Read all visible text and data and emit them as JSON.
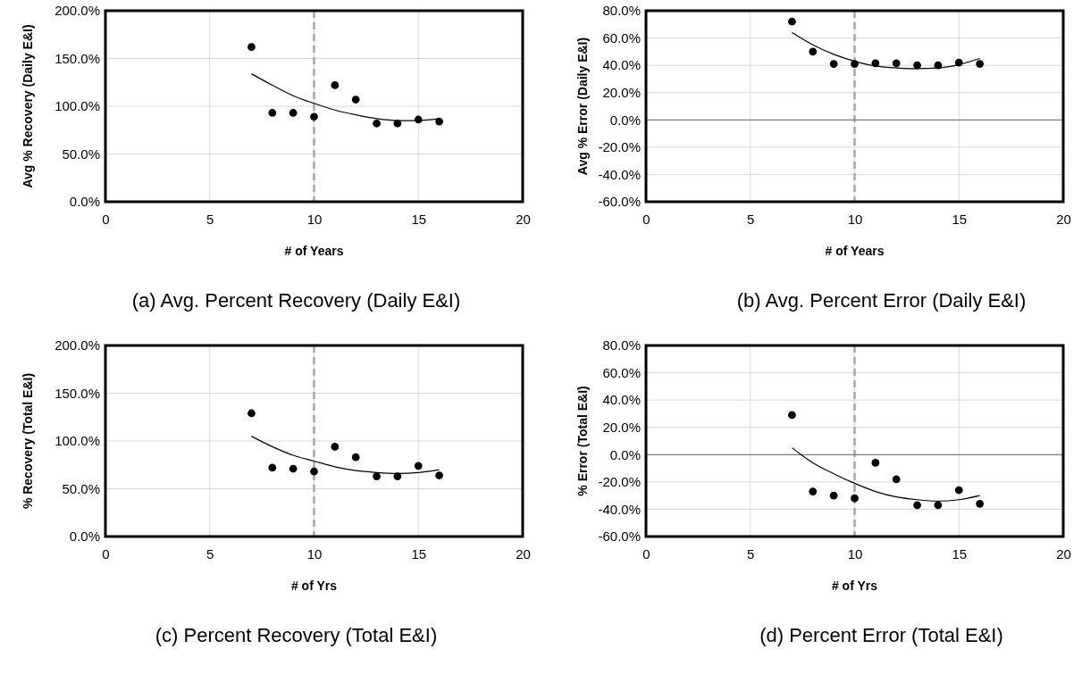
{
  "chart_data": [
    {
      "type": "scatter",
      "title": "(a) Avg. Percent Recovery (Daily E&I)",
      "xlabel": "# of Years",
      "ylabel": "Avg % Recovery (Daily E&I)",
      "xlim": [
        0,
        20
      ],
      "xticks": [
        0,
        5,
        10,
        15,
        20
      ],
      "ylim": [
        0,
        200
      ],
      "yticks": [
        {
          "value": 0,
          "label": "0.0%"
        },
        {
          "value": 50,
          "label": "50.0%"
        },
        {
          "value": 100,
          "label": "100.0%"
        },
        {
          "value": 150,
          "label": "150.0%"
        },
        {
          "value": 200,
          "label": "200.0%"
        }
      ],
      "grid": true,
      "series": [
        {
          "marker": "circle",
          "color": "#000000",
          "x": [
            7,
            8,
            9,
            10,
            11,
            12,
            13,
            14,
            15,
            16
          ],
          "values": [
            162,
            93,
            93,
            89,
            122,
            107,
            82,
            82,
            86,
            84
          ]
        },
        {
          "type": "line",
          "marker": "none",
          "color": "#000000",
          "x": [
            7,
            8,
            9,
            10,
            11,
            12,
            13,
            14,
            15,
            16
          ],
          "values": [
            134,
            122,
            111,
            103,
            96,
            91,
            87,
            85,
            85,
            87
          ]
        }
      ],
      "ref_lines": [
        {
          "axis": "x",
          "value": 10,
          "color": "#a6a6a6",
          "line_style": "dashed"
        }
      ]
    },
    {
      "type": "scatter",
      "title": "(b) Avg. Percent Error (Daily E&I)",
      "xlabel": "# of Years",
      "ylabel": "Avg % Error (Daily E&I)",
      "xlim": [
        0,
        20
      ],
      "xticks": [
        0,
        5,
        10,
        15,
        20
      ],
      "ylim": [
        -60,
        80
      ],
      "yticks": [
        {
          "value": -60,
          "label": "-60.0%"
        },
        {
          "value": -40,
          "label": "-40.0%"
        },
        {
          "value": -20,
          "label": "-20.0%"
        },
        {
          "value": 0,
          "label": "0.0%"
        },
        {
          "value": 20,
          "label": "20.0%"
        },
        {
          "value": 40,
          "label": "40.0%"
        },
        {
          "value": 60,
          "label": "60.0%"
        },
        {
          "value": 80,
          "label": "80.0%"
        }
      ],
      "grid": true,
      "series": [
        {
          "marker": "circle",
          "color": "#000000",
          "x": [
            7,
            8,
            9,
            10,
            11,
            12,
            13,
            14,
            15,
            16
          ],
          "values": [
            72,
            50,
            41,
            41,
            41.5,
            41.5,
            40,
            40,
            42,
            41
          ]
        },
        {
          "type": "line",
          "marker": "none",
          "color": "#000000",
          "x": [
            7,
            8,
            9,
            10,
            11,
            12,
            13,
            14,
            15,
            16
          ],
          "values": [
            64,
            55,
            48,
            43,
            39.5,
            38,
            37.5,
            38,
            40.5,
            45
          ]
        }
      ],
      "ref_lines": [
        {
          "axis": "x",
          "value": 10,
          "color": "#a6a6a6",
          "line_style": "dashed"
        },
        {
          "axis": "y",
          "value": 0,
          "color": "#7f7f7f",
          "line_style": "solid"
        }
      ]
    },
    {
      "type": "scatter",
      "title": "(c) Percent Recovery (Total E&I)",
      "xlabel": "# of Yrs",
      "ylabel": "% Recovery (Total E&I)",
      "xlim": [
        0,
        20
      ],
      "xticks": [
        0,
        5,
        10,
        15,
        20
      ],
      "ylim": [
        0,
        200
      ],
      "yticks": [
        {
          "value": 0,
          "label": "0.0%"
        },
        {
          "value": 50,
          "label": "50.0%"
        },
        {
          "value": 100,
          "label": "100.0%"
        },
        {
          "value": 150,
          "label": "150.0%"
        },
        {
          "value": 200,
          "label": "200.0%"
        }
      ],
      "grid": true,
      "series": [
        {
          "marker": "circle",
          "color": "#000000",
          "x": [
            7,
            8,
            9,
            10,
            11,
            12,
            13,
            14,
            15,
            16
          ],
          "values": [
            129,
            72,
            71,
            68,
            94,
            83,
            63,
            63,
            74,
            64
          ]
        },
        {
          "type": "line",
          "marker": "none",
          "color": "#000000",
          "x": [
            7,
            8,
            9,
            10,
            11,
            12,
            13,
            14,
            15,
            16
          ],
          "values": [
            105,
            94,
            85,
            79,
            73,
            69,
            67,
            66,
            67,
            70
          ]
        }
      ],
      "ref_lines": [
        {
          "axis": "x",
          "value": 10,
          "color": "#a6a6a6",
          "line_style": "dashed"
        }
      ]
    },
    {
      "type": "scatter",
      "title": "(d) Percent Error (Total E&I)",
      "xlabel": "# of Yrs",
      "ylabel": "% Error (Total E&I)",
      "xlim": [
        0,
        20
      ],
      "xticks": [
        0,
        5,
        10,
        15,
        20
      ],
      "ylim": [
        -60,
        80
      ],
      "yticks": [
        {
          "value": -60,
          "label": "-60.0%"
        },
        {
          "value": -40,
          "label": "-40.0%"
        },
        {
          "value": -20,
          "label": "-20.0%"
        },
        {
          "value": 0,
          "label": "0.0%"
        },
        {
          "value": 20,
          "label": "20.0%"
        },
        {
          "value": 40,
          "label": "40.0%"
        },
        {
          "value": 60,
          "label": "60.0%"
        },
        {
          "value": 80,
          "label": "80.0%"
        }
      ],
      "grid": true,
      "series": [
        {
          "marker": "circle",
          "color": "#000000",
          "x": [
            7,
            8,
            9,
            10,
            11,
            12,
            13,
            14,
            15,
            16
          ],
          "values": [
            29,
            -27,
            -30,
            -32,
            -6,
            -18,
            -37,
            -37,
            -26,
            -36
          ]
        },
        {
          "type": "line",
          "marker": "none",
          "color": "#000000",
          "x": [
            7,
            8,
            9,
            10,
            11,
            12,
            13,
            14,
            15,
            16
          ],
          "values": [
            5,
            -6,
            -14,
            -21,
            -27,
            -31,
            -33,
            -34,
            -33,
            -30
          ]
        }
      ],
      "ref_lines": [
        {
          "axis": "x",
          "value": 10,
          "color": "#a6a6a6",
          "line_style": "dashed"
        },
        {
          "axis": "y",
          "value": 0,
          "color": "#7f7f7f",
          "line_style": "solid"
        }
      ]
    }
  ]
}
